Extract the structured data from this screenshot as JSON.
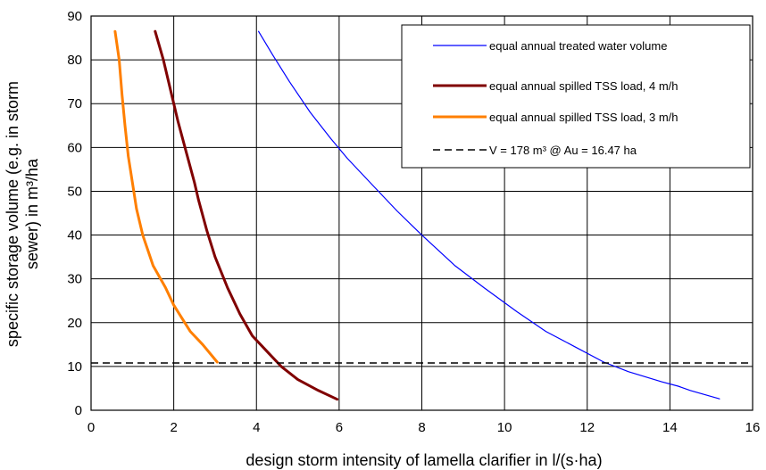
{
  "chart_data": {
    "type": "line",
    "title": "",
    "xlabel": "design storm intensity of lamella clarifier in l/(s·ha)",
    "ylabel_lines": [
      "specific storage volume (e.g. in storm",
      "sewer) in m³/ha"
    ],
    "xlim": [
      0,
      16
    ],
    "ylim": [
      0,
      90
    ],
    "xticks": [
      0,
      2,
      4,
      6,
      8,
      10,
      12,
      14,
      16
    ],
    "yticks": [
      0,
      10,
      20,
      30,
      40,
      50,
      60,
      70,
      80,
      90
    ],
    "xtick_labels": [
      "0",
      "2",
      "4",
      "6",
      "8",
      "10",
      "12",
      "14",
      "16"
    ],
    "ytick_labels": [
      "0",
      "10",
      "20",
      "30",
      "40",
      "50",
      "60",
      "70",
      "80",
      "90"
    ],
    "grid": true,
    "legend_position": "top-right",
    "series": [
      {
        "name": "equal annual treated water volume",
        "color": "#0000ff",
        "style": "solid",
        "x": [
          4.05,
          4.4,
          4.8,
          5.3,
          5.8,
          6.2,
          6.8,
          7.4,
          8.0,
          8.8,
          9.5,
          10.3,
          11.0,
          11.7,
          12.4,
          13.0,
          13.8,
          14.2,
          14.5,
          15.2
        ],
        "y": [
          86.5,
          81,
          75,
          68,
          62,
          57.5,
          51.5,
          45.5,
          40,
          33,
          28,
          22.5,
          18,
          14.5,
          11,
          8.8,
          6.5,
          5.5,
          4.5,
          2.6
        ]
      },
      {
        "name": "equal annual spilled TSS load, 4 m/h",
        "color": "#800000",
        "style": "solid",
        "x": [
          1.55,
          1.75,
          1.95,
          2.1,
          2.3,
          2.5,
          2.6,
          2.8,
          3.0,
          3.3,
          3.6,
          3.9,
          4.3,
          4.6,
          5.0,
          5.5,
          5.95
        ],
        "y": [
          86.5,
          80,
          72,
          66,
          59,
          52,
          48,
          41,
          35,
          28,
          22,
          17,
          13,
          10,
          7,
          4.5,
          2.5
        ]
      },
      {
        "name": "equal annual spilled TSS load, 3 m/h",
        "color": "#ff7f00",
        "style": "solid",
        "x": [
          0.58,
          0.68,
          0.75,
          0.82,
          0.9,
          1.0,
          1.1,
          1.25,
          1.5,
          1.8,
          2.0,
          2.2,
          2.4,
          2.7,
          3.05
        ],
        "y": [
          86.5,
          80,
          72,
          65,
          58,
          52,
          46,
          40,
          33,
          28,
          24,
          21,
          18,
          15,
          11
        ]
      },
      {
        "name": "V = 178 m³ @ Au = 16.47 ha",
        "color": "#000000",
        "style": "dashed",
        "x": [
          0,
          16
        ],
        "y": [
          10.8,
          10.8
        ]
      }
    ]
  }
}
